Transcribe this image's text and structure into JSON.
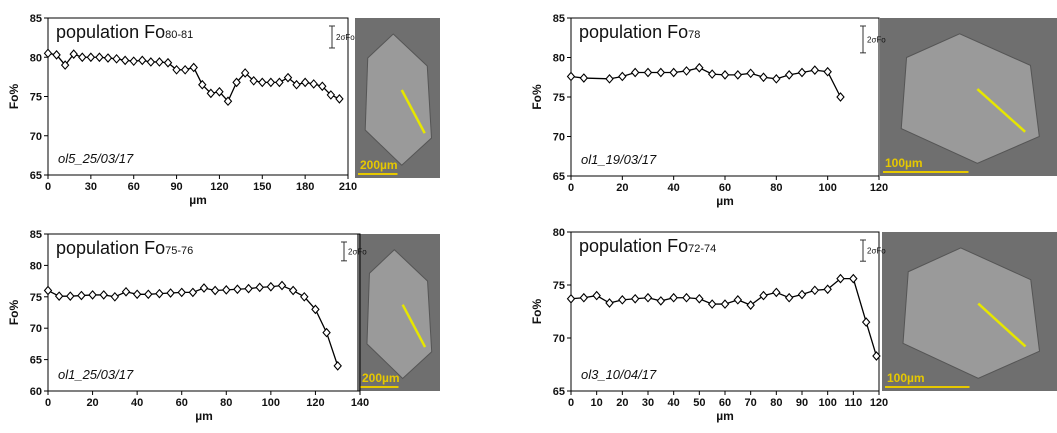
{
  "chart_data": [
    {
      "type": "line",
      "title": "population Fo",
      "title_subscript": "80-81",
      "sample": "ol5_25/03/17",
      "xlabel": "µm",
      "ylabel": "Fo%",
      "error_bar": {
        "label": "2σFo",
        "value": 2.8
      },
      "scale_bar": "200µm",
      "color": "#000000",
      "x": [
        0,
        6,
        12,
        18,
        24,
        30,
        36,
        42,
        48,
        54,
        60,
        66,
        72,
        78,
        84,
        90,
        96,
        102,
        108,
        114,
        120,
        126,
        132,
        138,
        144,
        150,
        156,
        162,
        168,
        174,
        180,
        186,
        192,
        198,
        204
      ],
      "values": [
        80.5,
        80.3,
        79,
        80.4,
        80,
        80,
        80,
        79.9,
        79.8,
        79.6,
        79.5,
        79.6,
        79.4,
        79.4,
        79.3,
        78.4,
        78.4,
        78.7,
        76.5,
        75.4,
        75.6,
        74.4,
        76.8,
        78,
        77,
        76.8,
        76.8,
        76.8,
        77.4,
        76.5,
        76.8,
        76.6,
        76.3,
        75.2,
        74.7
      ],
      "xlim": [
        0,
        210
      ],
      "xticks": [
        0,
        30,
        60,
        90,
        120,
        150,
        180,
        210
      ],
      "ylim": [
        65,
        85
      ],
      "yticks": [
        65,
        70,
        75,
        80,
        85
      ]
    },
    {
      "type": "line",
      "title": "population Fo",
      "title_subscript": "78",
      "sample": "ol1_19/03/17",
      "xlabel": "µm",
      "ylabel": "Fo%",
      "error_bar": {
        "label": "2σFo",
        "value": 3.4
      },
      "scale_bar": "100µm",
      "color": "#000000",
      "x": [
        0,
        5,
        15,
        20,
        25,
        30,
        35,
        40,
        45,
        50,
        55,
        60,
        65,
        70,
        75,
        80,
        85,
        90,
        95,
        100,
        105
      ],
      "values": [
        77.6,
        77.4,
        77.3,
        77.6,
        78.1,
        78.1,
        78.1,
        78.1,
        78.3,
        78.7,
        77.9,
        77.8,
        77.8,
        78,
        77.5,
        77.3,
        77.8,
        78.1,
        78.4,
        78.2,
        75
      ],
      "xlim": [
        0,
        120
      ],
      "xticks": [
        0,
        20,
        40,
        60,
        80,
        100,
        120
      ],
      "ylim": [
        65,
        85
      ],
      "yticks": [
        65,
        70,
        75,
        80,
        85
      ]
    },
    {
      "type": "line",
      "title": "population Fo",
      "title_subscript": "75-76",
      "sample": "ol1_25/03/17",
      "xlabel": "µm",
      "ylabel": "Fo%",
      "error_bar": {
        "label": "2σFo",
        "value": 3
      },
      "scale_bar": "200µm",
      "color": "#000000",
      "x": [
        0,
        5,
        10,
        15,
        20,
        25,
        30,
        35,
        40,
        45,
        50,
        55,
        60,
        65,
        70,
        75,
        80,
        85,
        90,
        95,
        100,
        105,
        110,
        115,
        120,
        125,
        130
      ],
      "values": [
        76,
        75.1,
        75.1,
        75.2,
        75.3,
        75.3,
        75,
        75.8,
        75.4,
        75.4,
        75.5,
        75.6,
        75.7,
        75.7,
        76.4,
        76,
        76.1,
        76.2,
        76.3,
        76.5,
        76.6,
        76.8,
        76,
        75,
        73,
        69.3,
        64
      ],
      "xlim": [
        0,
        140
      ],
      "xticks": [
        0,
        20,
        40,
        60,
        80,
        100,
        120,
        140
      ],
      "ylim": [
        60,
        85
      ],
      "yticks": [
        60,
        65,
        70,
        75,
        80,
        85
      ]
    },
    {
      "type": "line",
      "title": "population Fo",
      "title_subscript": "72-74",
      "sample": "ol3_10/04/17",
      "xlabel": "µm",
      "ylabel": "Fo%",
      "error_bar": {
        "label": "2σFo",
        "value": 2
      },
      "scale_bar": "100µm",
      "color": "#000000",
      "x": [
        0,
        5,
        10,
        15,
        20,
        25,
        30,
        35,
        40,
        45,
        50,
        55,
        60,
        65,
        70,
        75,
        80,
        85,
        90,
        95,
        100,
        105,
        110,
        115,
        119
      ],
      "values": [
        73.7,
        73.8,
        74,
        73.3,
        73.6,
        73.7,
        73.8,
        73.5,
        73.8,
        73.8,
        73.7,
        73.2,
        73.2,
        73.6,
        73.1,
        74,
        74.3,
        73.8,
        74.1,
        74.5,
        74.6,
        75.6,
        75.6,
        71.5,
        68.3
      ],
      "xlim": [
        0,
        120
      ],
      "xticks": [
        0,
        10,
        20,
        30,
        40,
        50,
        60,
        70,
        80,
        90,
        100,
        110,
        120
      ],
      "ylim": [
        65,
        80
      ],
      "yticks": [
        65,
        70,
        75,
        80
      ]
    }
  ]
}
